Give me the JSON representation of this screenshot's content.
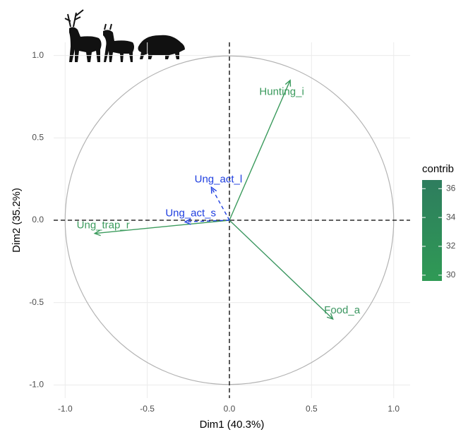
{
  "chart_data": {
    "type": "pca_variables",
    "x_label": "Dim1 (40.3%)",
    "y_label": "Dim2 (35.2%)",
    "xlim": [
      -1.07,
      1.1
    ],
    "ylim": [
      -1.08,
      1.08
    ],
    "xticks": [
      {
        "value": -1,
        "label": "-1.0"
      },
      -0.5,
      {
        "value": 0,
        "label": "0.0"
      },
      0.5,
      {
        "value": 1,
        "label": "1.0"
      }
    ],
    "yticks": [
      {
        "value": -1,
        "label": "-1.0"
      },
      -0.5,
      {
        "value": 0,
        "label": "0.0"
      },
      0.5,
      {
        "value": 1,
        "label": "1.0"
      }
    ],
    "grid": true,
    "variables": [
      {
        "label": "Hunting_i",
        "x": 0.37,
        "y": 0.85,
        "contrib": 35.5,
        "color": "#3a9a5c",
        "dashed": false
      },
      {
        "label": "Food_a",
        "x": 0.63,
        "y": -0.6,
        "contrib": 33.5,
        "color": "#3b9660",
        "dashed": false
      },
      {
        "label": "Ung_trap_r",
        "x": -0.82,
        "y": -0.08,
        "contrib": 31,
        "color": "#3d9c5e",
        "dashed": false
      },
      {
        "label": "Ung_act_l",
        "x": -0.11,
        "y": 0.2,
        "color": "#1f3fe0",
        "dashed": true
      },
      {
        "label": "Ung_act_s",
        "x": -0.27,
        "y": -0.01,
        "color": "#1f3fe0",
        "dashed": true
      }
    ],
    "colorbar": {
      "title": "contrib",
      "range": [
        29.6,
        36.6
      ],
      "ticks": [
        30,
        32,
        34,
        36
      ],
      "colors": [
        "#2f9a55",
        "#2e7d5e"
      ]
    }
  }
}
